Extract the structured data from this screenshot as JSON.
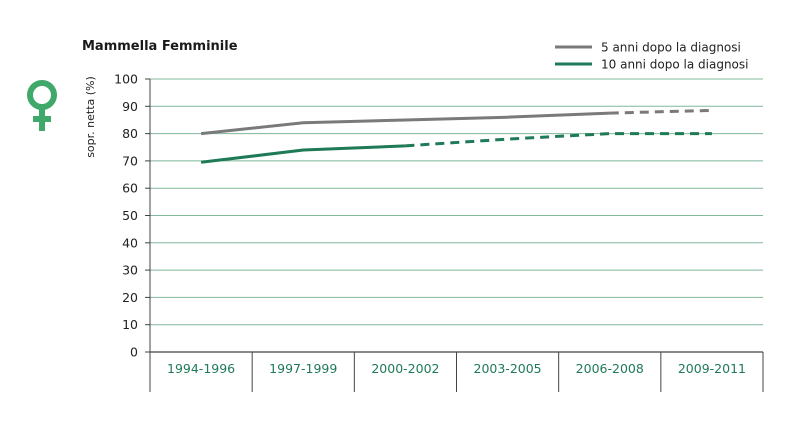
{
  "chart_data": {
    "type": "line",
    "title": "Mammella Femminile",
    "ylabel": "sopr. netta (%)",
    "xlabel": "",
    "ylim": [
      0,
      100
    ],
    "yticks": [
      0,
      10,
      20,
      30,
      40,
      50,
      60,
      70,
      80,
      90,
      100
    ],
    "categories": [
      "1994-1996",
      "1997-1999",
      "2000-2002",
      "2003-2005",
      "2006-2008",
      "2009-2011"
    ],
    "grid": true,
    "legend_position": "top-right",
    "series": [
      {
        "name": "5 anni dopo la diagnosi",
        "color": "#7a7a7a",
        "values": [
          80,
          84,
          85,
          86,
          87.5,
          88.5
        ],
        "dashed_from_index": 4
      },
      {
        "name": "10 anni dopo la diagnosi",
        "color": "#1f7a57",
        "values": [
          69.5,
          74,
          75.5,
          78,
          80,
          80
        ],
        "dashed_from_index": 2
      }
    ]
  },
  "icon": {
    "name": "female-symbol-icon",
    "color": "#3fa86a"
  },
  "colors": {
    "grid": "#7fb89a",
    "axis": "#444444",
    "tick_text": "#1f7a57"
  }
}
